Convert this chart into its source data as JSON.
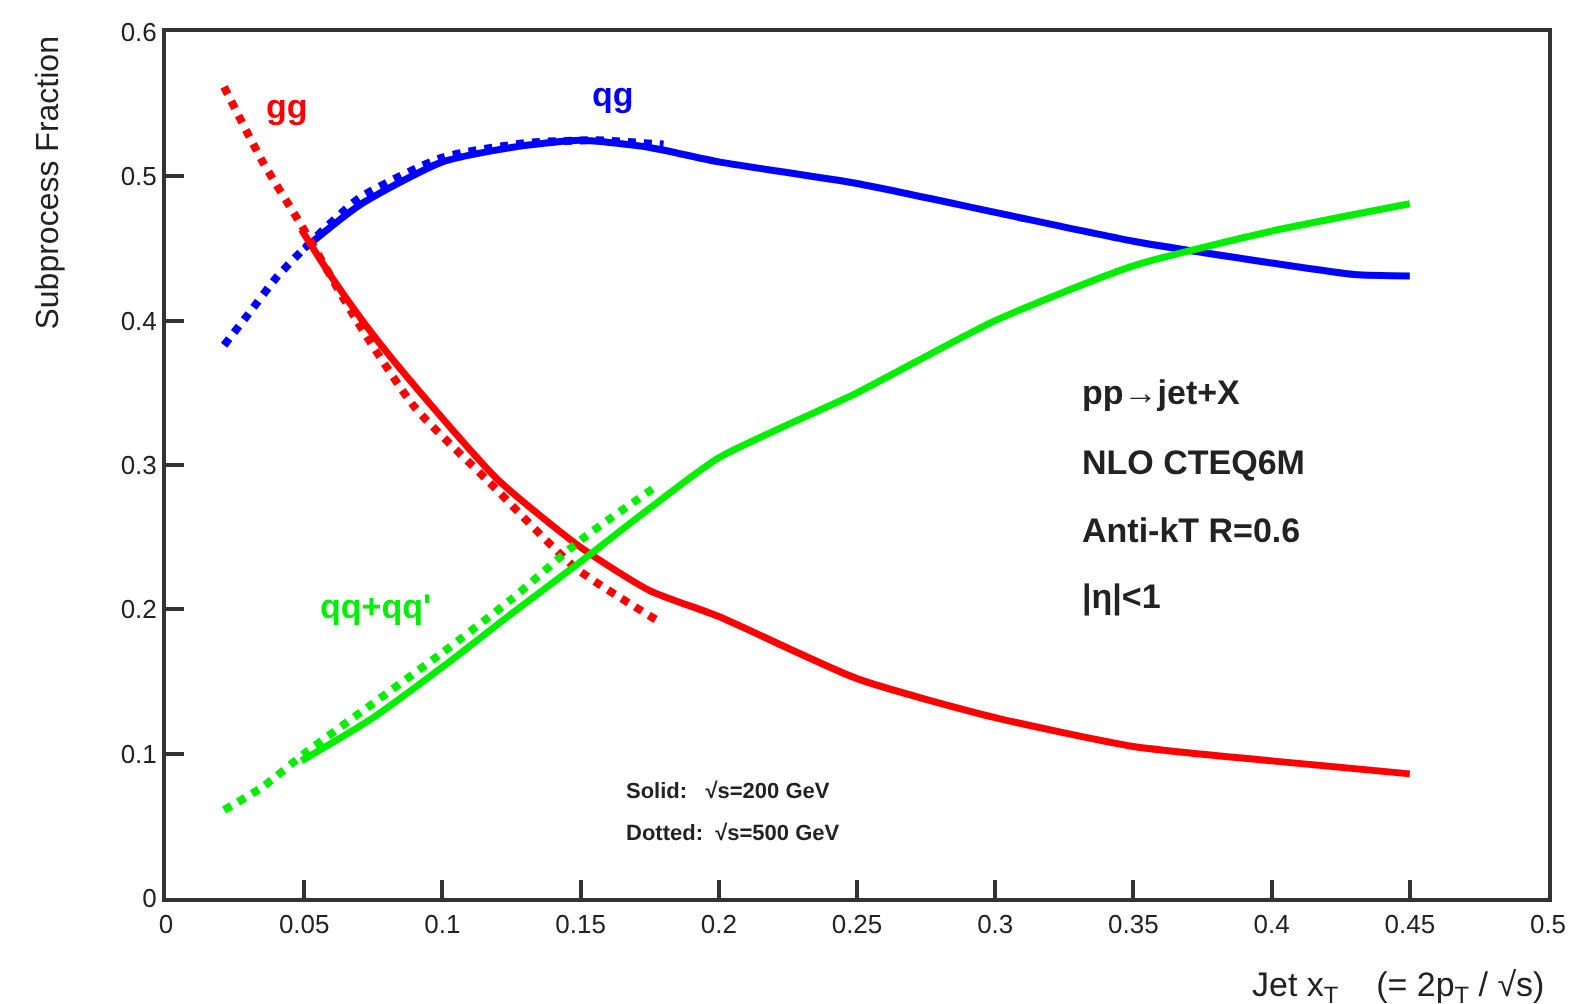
{
  "chart_data": {
    "type": "line",
    "xlabel": "Jet x$_{T}$    (= 2p$_{T}$ / √s)",
    "ylabel": "Subprocess Fraction",
    "xlim": [
      0,
      0.5
    ],
    "xticks": [
      0,
      0.05,
      0.1,
      0.15,
      0.2,
      0.25,
      0.3,
      0.35,
      0.4,
      0.45,
      0.5
    ],
    "ylim": [
      0,
      0.6
    ],
    "yticks": [
      0,
      0.1,
      0.2,
      0.3,
      0.4,
      0.5,
      0.6
    ],
    "legend": false,
    "marker": "none",
    "series": [
      {
        "color": "#0000ff",
        "line_style": "solid",
        "x": [
          0.05,
          0.07,
          0.1,
          0.125,
          0.15,
          0.175,
          0.2,
          0.25,
          0.3,
          0.35,
          0.4,
          0.43,
          0.45
        ],
        "values": [
          0.45,
          0.48,
          0.51,
          0.52,
          0.525,
          0.52,
          0.51,
          0.495,
          0.475,
          0.455,
          0.44,
          0.432,
          0.431
        ]
      },
      {
        "name": "qg",
        "color": "#0000ff",
        "line_style": "dotted",
        "x": [
          0.021,
          0.03,
          0.04,
          0.05,
          0.07,
          0.1,
          0.13,
          0.155,
          0.18
        ],
        "values": [
          0.383,
          0.405,
          0.43,
          0.45,
          0.485,
          0.513,
          0.523,
          0.525,
          0.522
        ]
      },
      {
        "color": "#ff0000",
        "line_style": "solid",
        "x": [
          0.049,
          0.06,
          0.075,
          0.093,
          0.12,
          0.15,
          0.175,
          0.2,
          0.25,
          0.3,
          0.35,
          0.4,
          0.45
        ],
        "values": [
          0.463,
          0.43,
          0.39,
          0.348,
          0.29,
          0.243,
          0.213,
          0.195,
          0.152,
          0.125,
          0.105,
          0.095,
          0.086
        ]
      },
      {
        "name": "gg",
        "color": "#ff0000",
        "line_style": "dotted",
        "x": [
          0.021,
          0.035,
          0.049,
          0.069,
          0.09,
          0.117,
          0.148,
          0.178
        ],
        "values": [
          0.562,
          0.51,
          0.466,
          0.4,
          0.34,
          0.288,
          0.229,
          0.192
        ]
      },
      {
        "color": "#00ee00",
        "line_style": "solid",
        "x": [
          0.049,
          0.075,
          0.1,
          0.125,
          0.15,
          0.175,
          0.2,
          0.25,
          0.3,
          0.35,
          0.4,
          0.45
        ],
        "values": [
          0.095,
          0.125,
          0.16,
          0.197,
          0.233,
          0.27,
          0.305,
          0.35,
          0.4,
          0.438,
          0.462,
          0.481
        ]
      },
      {
        "name": "qq+qq'",
        "color": "#00ee00",
        "line_style": "dotted",
        "x": [
          0.021,
          0.035,
          0.05,
          0.075,
          0.1,
          0.125,
          0.15,
          0.178
        ],
        "values": [
          0.061,
          0.077,
          0.1,
          0.135,
          0.17,
          0.207,
          0.248,
          0.286
        ]
      }
    ],
    "annotations": [
      "pp→jet+X",
      "NLO CTEQ6M",
      "Anti-kT R=0.6",
      "|η|<1",
      "Solid:   √s=200 GeV",
      "Dotted:  √s=500 GeV"
    ]
  }
}
